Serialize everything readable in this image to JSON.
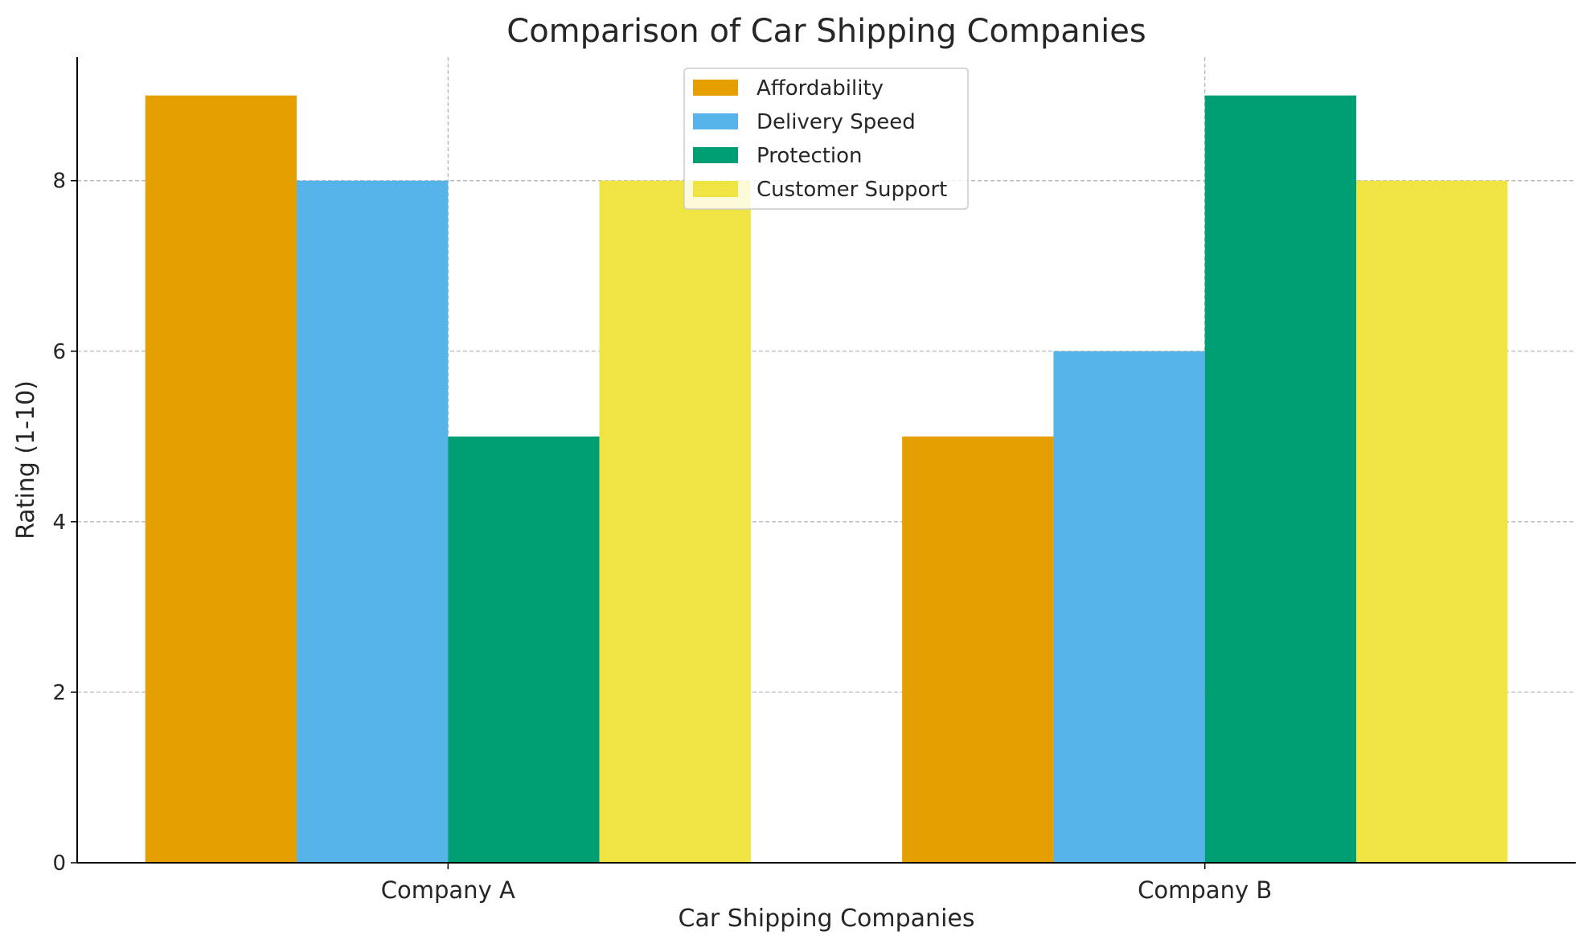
{
  "chart_data": {
    "type": "bar",
    "title": "Comparison of Car Shipping Companies",
    "xlabel": "Car Shipping Companies",
    "ylabel": "Rating (1-10)",
    "categories": [
      "Company A",
      "Company B"
    ],
    "series": [
      {
        "name": "Affordability",
        "values": [
          9,
          5
        ],
        "color": "#E69F00"
      },
      {
        "name": "Delivery Speed",
        "values": [
          8,
          6
        ],
        "color": "#56B4E9"
      },
      {
        "name": "Protection",
        "values": [
          5,
          9
        ],
        "color": "#009E73"
      },
      {
        "name": "Customer Support",
        "values": [
          8,
          8
        ],
        "color": "#F0E442"
      }
    ],
    "ylim": [
      0,
      9.45
    ],
    "yticks": [
      0,
      2,
      4,
      6,
      8
    ],
    "grid": true,
    "legend_position": "top-center"
  }
}
